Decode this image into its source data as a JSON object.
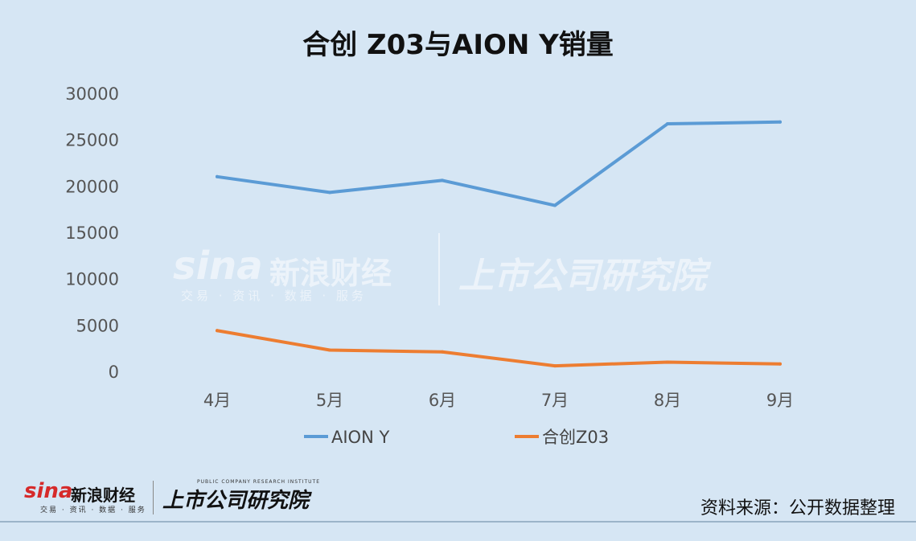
{
  "chart_data": {
    "type": "line",
    "title": "合创 Z03与AION Y销量",
    "categories": [
      "4月",
      "5月",
      "6月",
      "7月",
      "8月",
      "9月"
    ],
    "ylim": [
      0,
      30000
    ],
    "yticks": [
      0,
      5000,
      10000,
      15000,
      20000,
      25000,
      30000
    ],
    "grid": false,
    "legend_position": "bottom",
    "series": [
      {
        "name": "AION Y",
        "color": "#5b9bd5",
        "values": [
          21000,
          19300,
          20600,
          17900,
          26700,
          26900
        ]
      },
      {
        "name": "合创Z03",
        "color": "#ed7d31",
        "values": [
          4400,
          2300,
          2100,
          600,
          1000,
          800
        ]
      }
    ]
  },
  "watermark": {
    "brand": "sina",
    "brand_cn": "新浪财经",
    "brand_sub": "交易 · 资讯 · 数据 · 服务",
    "column": "上市公司研究院"
  },
  "footer": {
    "brand": "sina",
    "brand_cn": "新浪财经",
    "brand_sub": "交易 · 资讯 · 数据 · 服务",
    "column": "上市公司研究院",
    "column_en": "PUBLIC COMPANY RESEARCH INSTITUTE",
    "source": "资料来源：公开数据整理"
  }
}
